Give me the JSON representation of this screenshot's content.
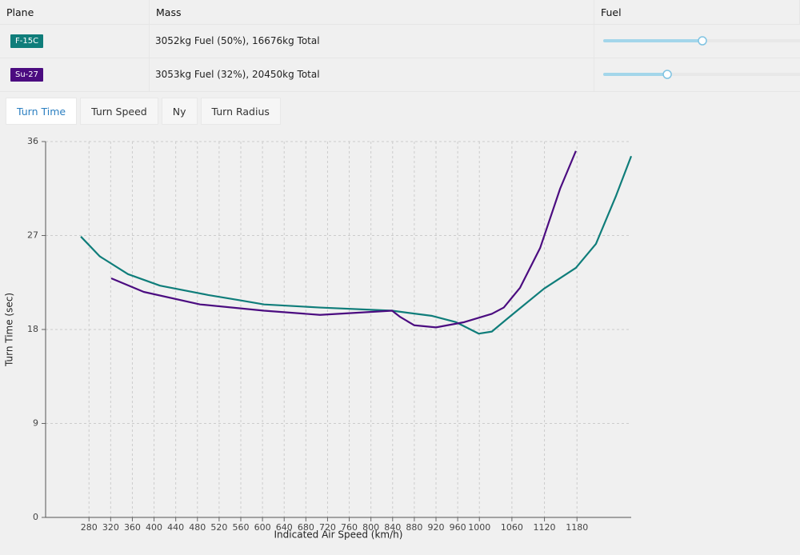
{
  "table": {
    "headers": [
      "Plane",
      "Mass",
      "Fuel"
    ],
    "rows": [
      {
        "plane": "F-15C",
        "color": "#0f7d7a",
        "mass": "3052kg Fuel (50%), 16676kg Total",
        "fuel": 50
      },
      {
        "plane": "Su-27",
        "color": "#4b0c80",
        "mass": "3053kg Fuel (32%), 20450kg Total",
        "fuel": 32
      }
    ]
  },
  "tabs": [
    "Turn Time",
    "Turn Speed",
    "Ny",
    "Turn Radius"
  ],
  "active_tab": 0,
  "chart_data": {
    "type": "line",
    "x_label": "Indicated Air Speed (km/h)",
    "y_label": "Turn Time (sec)",
    "xlim": [
      200,
      1280
    ],
    "ylim": [
      0,
      36
    ],
    "xticks": [
      280,
      320,
      360,
      400,
      440,
      480,
      520,
      560,
      600,
      640,
      680,
      720,
      760,
      800,
      840,
      880,
      920,
      960,
      1000,
      1060,
      1120,
      1180
    ],
    "yticks": [
      0,
      9,
      18,
      27,
      36
    ],
    "grid": true,
    "series": [
      {
        "color": "#0f7d7a",
        "x": [
          265,
          300,
          352,
          411,
          500,
          558,
          603,
          706,
          839,
          913,
          957,
          999,
          1023,
          1060,
          1119,
          1178,
          1215,
          1252,
          1280
        ],
        "values": [
          26.9,
          25.0,
          23.3,
          22.2,
          21.3,
          20.8,
          20.4,
          20.1,
          19.8,
          19.3,
          18.7,
          17.6,
          17.8,
          19.4,
          21.9,
          23.9,
          26.2,
          30.8,
          34.6
        ]
      },
      {
        "color": "#4b0c80",
        "x": [
          321,
          381,
          485,
          603,
          706,
          839,
          854,
          880,
          920,
          972,
          1023,
          1045,
          1075,
          1112,
          1149,
          1178
        ],
        "values": [
          22.9,
          21.6,
          20.4,
          19.8,
          19.4,
          19.8,
          19.2,
          18.4,
          18.2,
          18.7,
          19.5,
          20.1,
          22.0,
          25.8,
          31.5,
          35.1
        ]
      }
    ]
  }
}
